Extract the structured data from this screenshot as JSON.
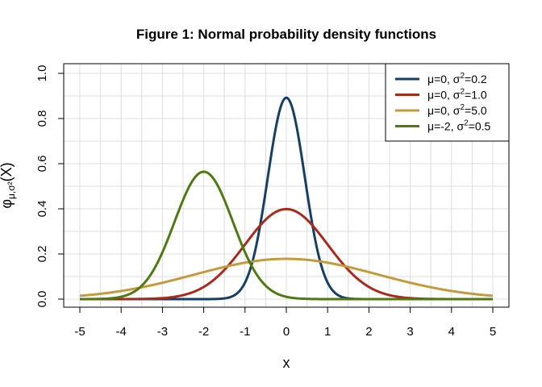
{
  "chart_data": {
    "type": "line",
    "title": "Figure 1: Normal probability density functions",
    "xlabel": "x",
    "ylabel": "φμ,σ²(X)",
    "ylabel_main": "φ",
    "ylabel_sub": "μ,σ²",
    "ylabel_tail": "(X)",
    "xlim": [
      -5,
      5
    ],
    "ylim": [
      0,
      1
    ],
    "x_ticks": [
      -5,
      -4,
      -3,
      -2,
      -1,
      0,
      1,
      2,
      3,
      4,
      5
    ],
    "x_tick_labels": [
      "-5",
      "-4",
      "-3",
      "-2",
      "-1",
      "0",
      "1",
      "2",
      "3",
      "4",
      "5"
    ],
    "y_ticks": [
      0,
      0.2,
      0.4,
      0.6,
      0.8,
      1
    ],
    "y_tick_labels": [
      "0.0",
      "0.2",
      "0.4",
      "0.6",
      "0.8",
      "1.0"
    ],
    "grid": true,
    "legend_position": "top-right",
    "series": [
      {
        "name": "μ=0, σ2=0.2",
        "name_main": "μ=0, σ",
        "name_sup": "2",
        "name_tail": "=0.2",
        "mu": 0,
        "sigma2": 0.2,
        "color": "#173f66",
        "peak": 0.892
      },
      {
        "name": "μ=0, σ2=1.0",
        "name_main": "μ=0, σ",
        "name_sup": "2",
        "name_tail": "=1.0",
        "mu": 0,
        "sigma2": 1.0,
        "color": "#a82a1c",
        "peak": 0.399
      },
      {
        "name": "μ=0, σ2=5.0",
        "name_main": "μ=0, σ",
        "name_sup": "2",
        "name_tail": "=5.0",
        "mu": 0,
        "sigma2": 5.0,
        "color": "#c49a3e",
        "peak": 0.178
      },
      {
        "name": "μ=-2, σ2=0.5",
        "name_main": "μ=-2, σ",
        "name_sup": "2",
        "name_tail": "=0.5",
        "mu": -2,
        "sigma2": 0.5,
        "color": "#4e7a12",
        "peak": 0.564
      }
    ]
  }
}
